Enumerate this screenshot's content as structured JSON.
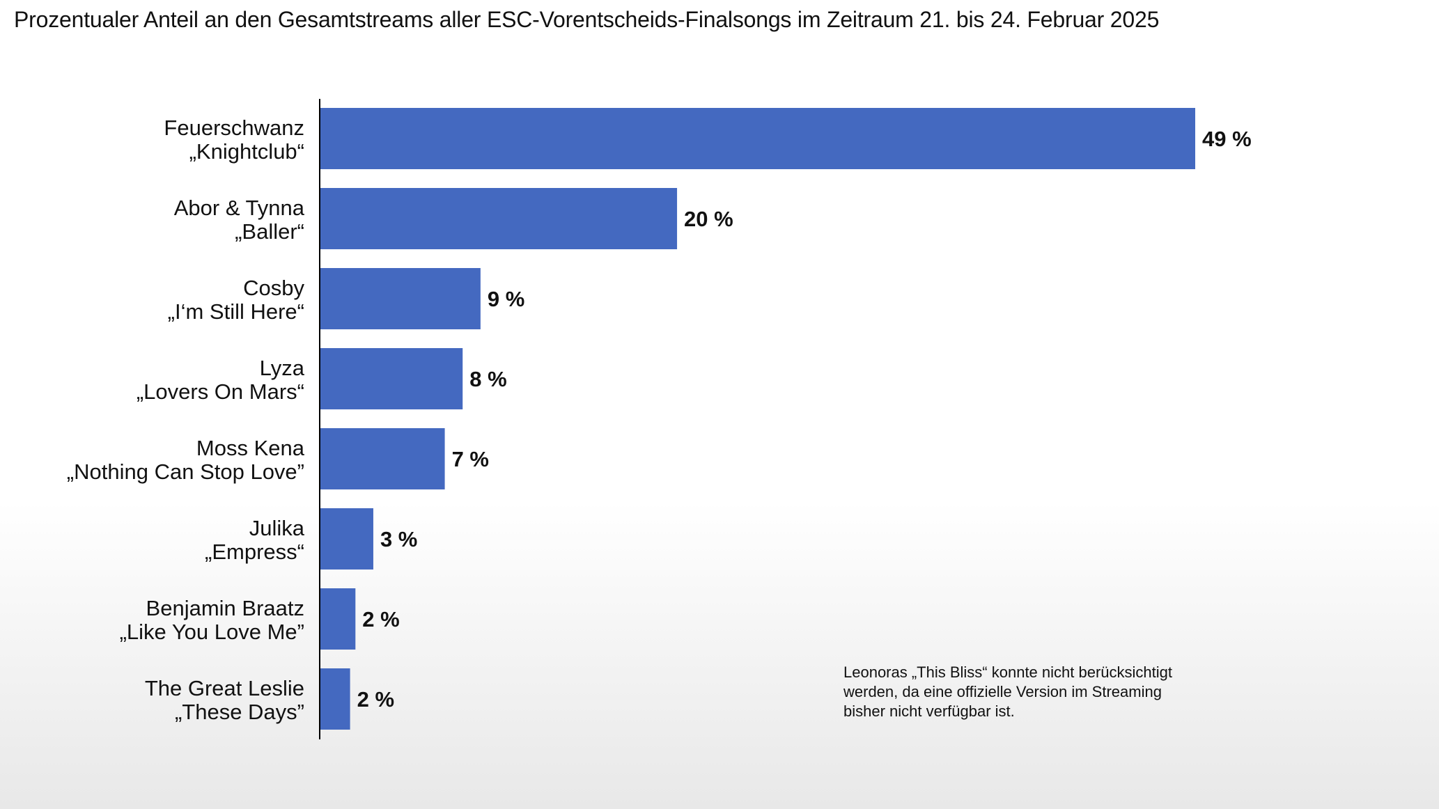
{
  "chart_data": {
    "type": "bar",
    "orientation": "horizontal",
    "title": "Prozentualer Anteil an den Gesamtstreams aller ESC-Vorentscheids-Finalsongs im Zeitraum 21. bis 24. Februar 2025",
    "categories": [
      [
        "Feuerschwanz",
        "„Knightclub“"
      ],
      [
        "Abor & Tynna",
        "„Baller“"
      ],
      [
        "Cosby",
        "„I‘m Still Here“"
      ],
      [
        "Lyza",
        "„Lovers On Mars“"
      ],
      [
        "Moss Kena",
        "„Nothing Can Stop Love”"
      ],
      [
        "Julika",
        "„Empress“"
      ],
      [
        "Benjamin Braatz",
        "„Like You Love Me”"
      ],
      [
        "The Great Leslie",
        "„These Days”"
      ]
    ],
    "values": [
      49,
      20,
      9,
      8,
      7,
      3,
      2,
      1.7
    ],
    "value_labels": [
      "49 %",
      "20 %",
      "9 %",
      "8 %",
      "7 %",
      "3 %",
      "2 %",
      "2 %"
    ],
    "xlim": [
      0,
      49
    ],
    "grid": false,
    "bar_color": "#4469c0",
    "annotation": [
      "Leonoras „This Bliss“ konnte nicht berücksichtigt",
      "werden, da eine offizielle Version im Streaming",
      "bisher nicht verfügbar ist."
    ]
  }
}
